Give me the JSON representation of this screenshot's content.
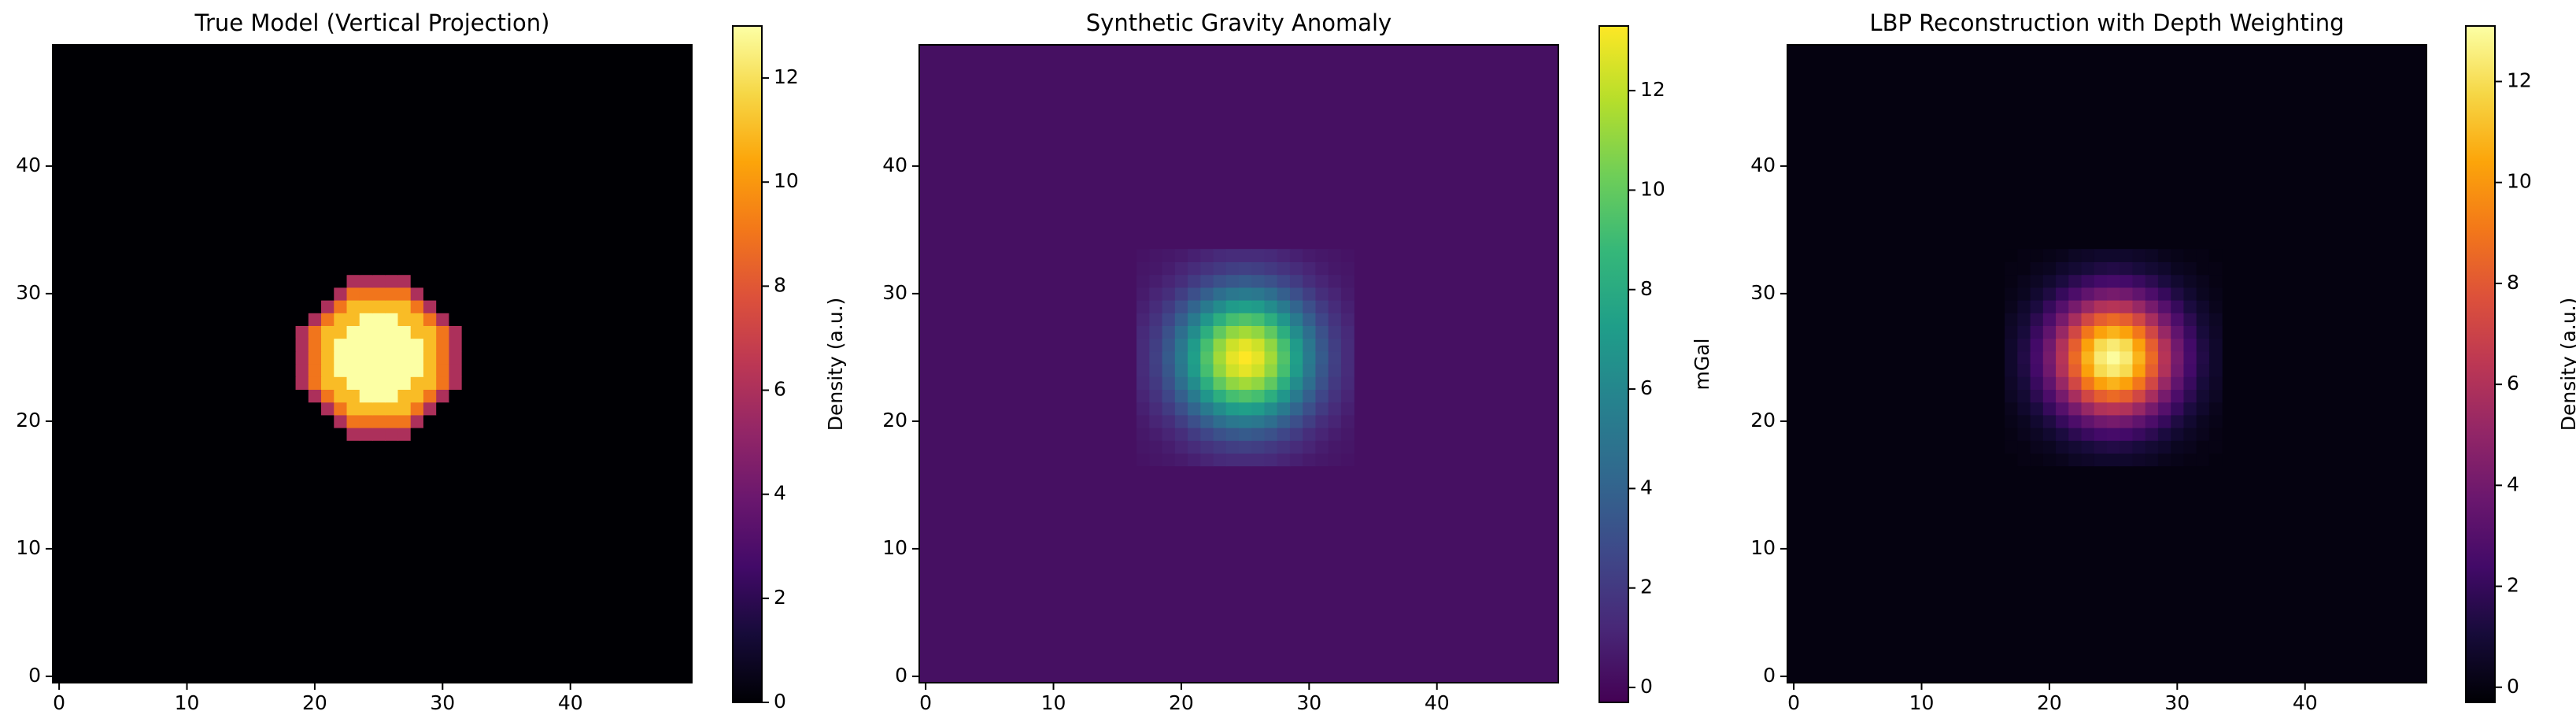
{
  "chart_data": [
    {
      "type": "heatmap",
      "title": "True Model (Vertical Projection)",
      "colorbar_label": "Density (a.u.)",
      "colormap": "inferno",
      "xlim": [
        -0.5,
        49.5
      ],
      "ylim": [
        -0.5,
        49.5
      ],
      "xticks": [
        0,
        10,
        20,
        30,
        40
      ],
      "yticks": [
        0,
        10,
        20,
        30,
        40
      ],
      "clim": [
        0,
        13
      ],
      "cticks": [
        0,
        2,
        4,
        6,
        8,
        10,
        12
      ],
      "fill_value": 0,
      "x": [
        17,
        18,
        19,
        20,
        21,
        22,
        23,
        24,
        25,
        26,
        27,
        28,
        29,
        30,
        31,
        32,
        33
      ],
      "y": [
        17,
        18,
        19,
        20,
        21,
        22,
        23,
        24,
        25,
        26,
        27,
        28,
        29,
        30,
        31,
        32,
        33
      ],
      "z": [
        [
          0,
          0,
          0,
          0,
          0,
          0,
          0,
          0,
          0,
          0,
          0,
          0,
          0,
          0,
          0,
          0,
          0
        ],
        [
          0,
          0,
          0,
          0,
          0,
          0,
          0,
          0,
          0,
          0,
          0,
          0,
          0,
          0,
          0,
          0,
          0
        ],
        [
          0,
          0,
          0,
          0,
          0,
          0,
          6,
          6,
          6,
          6,
          6,
          0,
          0,
          0,
          0,
          0,
          0
        ],
        [
          0,
          0,
          0,
          0,
          0,
          6,
          9,
          9,
          9,
          9,
          9,
          6,
          0,
          0,
          0,
          0,
          0
        ],
        [
          0,
          0,
          0,
          0,
          6,
          9,
          11,
          11,
          11,
          11,
          11,
          9,
          6,
          0,
          0,
          0,
          0
        ],
        [
          0,
          0,
          0,
          6,
          9,
          11,
          11,
          13,
          13,
          13,
          11,
          11,
          9,
          6,
          0,
          0,
          0
        ],
        [
          0,
          0,
          6,
          9,
          11,
          11,
          13,
          13,
          13,
          13,
          13,
          11,
          11,
          9,
          6,
          0,
          0
        ],
        [
          0,
          0,
          6,
          9,
          11,
          13,
          13,
          13,
          13,
          13,
          13,
          13,
          11,
          9,
          6,
          0,
          0
        ],
        [
          0,
          0,
          6,
          9,
          11,
          13,
          13,
          13,
          13,
          13,
          13,
          13,
          11,
          9,
          6,
          0,
          0
        ],
        [
          0,
          0,
          6,
          9,
          11,
          13,
          13,
          13,
          13,
          13,
          13,
          13,
          11,
          9,
          6,
          0,
          0
        ],
        [
          0,
          0,
          6,
          9,
          11,
          11,
          13,
          13,
          13,
          13,
          13,
          11,
          11,
          9,
          6,
          0,
          0
        ],
        [
          0,
          0,
          0,
          6,
          9,
          11,
          11,
          13,
          13,
          13,
          11,
          11,
          9,
          6,
          0,
          0,
          0
        ],
        [
          0,
          0,
          0,
          0,
          6,
          9,
          11,
          11,
          11,
          11,
          11,
          9,
          6,
          0,
          0,
          0,
          0
        ],
        [
          0,
          0,
          0,
          0,
          0,
          6,
          9,
          9,
          9,
          9,
          9,
          6,
          0,
          0,
          0,
          0,
          0
        ],
        [
          0,
          0,
          0,
          0,
          0,
          0,
          6,
          6,
          6,
          6,
          6,
          0,
          0,
          0,
          0,
          0,
          0
        ],
        [
          0,
          0,
          0,
          0,
          0,
          0,
          0,
          0,
          0,
          0,
          0,
          0,
          0,
          0,
          0,
          0,
          0
        ],
        [
          0,
          0,
          0,
          0,
          0,
          0,
          0,
          0,
          0,
          0,
          0,
          0,
          0,
          0,
          0,
          0,
          0
        ]
      ]
    },
    {
      "type": "heatmap",
      "title": "Synthetic Gravity Anomaly",
      "colorbar_label": "mGal",
      "colormap": "viridis",
      "xlim": [
        -0.5,
        49.5
      ],
      "ylim": [
        -0.5,
        49.5
      ],
      "xticks": [
        0,
        10,
        20,
        30,
        40
      ],
      "yticks": [
        0,
        10,
        20,
        30,
        40
      ],
      "clim": [
        -0.3,
        13.3
      ],
      "cticks": [
        0,
        2,
        4,
        6,
        8,
        10,
        12
      ],
      "fill_value": 0.3,
      "x": [
        17,
        18,
        19,
        20,
        21,
        22,
        23,
        24,
        25,
        26,
        27,
        28,
        29,
        30,
        31,
        32,
        33
      ],
      "y": [
        17,
        18,
        19,
        20,
        21,
        22,
        23,
        24,
        25,
        26,
        27,
        28,
        29,
        30,
        31,
        32,
        33
      ],
      "z": [
        [
          0.4,
          0.5,
          0.6,
          0.7,
          0.9,
          1.1,
          1.3,
          1.4,
          1.4,
          1.4,
          1.3,
          1.1,
          0.9,
          0.7,
          0.6,
          0.5,
          0.4
        ],
        [
          0.5,
          0.6,
          0.8,
          1.1,
          1.4,
          1.7,
          2.0,
          2.2,
          2.3,
          2.2,
          2.0,
          1.7,
          1.4,
          1.1,
          0.8,
          0.6,
          0.5
        ],
        [
          0.6,
          0.8,
          1.1,
          1.5,
          2.1,
          2.6,
          3.1,
          3.4,
          3.6,
          3.4,
          3.1,
          2.6,
          2.1,
          1.5,
          1.1,
          0.8,
          0.6
        ],
        [
          0.7,
          1.1,
          1.5,
          2.2,
          3.0,
          3.8,
          4.6,
          5.1,
          5.3,
          5.1,
          4.6,
          3.8,
          3.0,
          2.2,
          1.5,
          1.1,
          0.7
        ],
        [
          0.9,
          1.4,
          2.1,
          3.0,
          4.1,
          5.3,
          6.3,
          7.1,
          7.3,
          7.1,
          6.3,
          5.3,
          4.1,
          3.0,
          2.1,
          1.4,
          0.9
        ],
        [
          1.1,
          1.7,
          2.6,
          3.8,
          5.3,
          6.8,
          8.2,
          9.2,
          9.5,
          9.2,
          8.2,
          6.8,
          5.3,
          3.8,
          2.6,
          1.7,
          1.1
        ],
        [
          1.3,
          2.0,
          3.1,
          4.6,
          6.3,
          8.2,
          9.9,
          11.0,
          11.4,
          11.0,
          9.9,
          8.2,
          6.3,
          4.6,
          3.1,
          2.0,
          1.3
        ],
        [
          1.4,
          2.2,
          3.4,
          5.1,
          7.1,
          9.2,
          11.0,
          12.3,
          12.8,
          12.3,
          11.0,
          9.2,
          7.1,
          5.1,
          3.4,
          2.2,
          1.4
        ],
        [
          1.4,
          2.3,
          3.6,
          5.3,
          7.3,
          9.5,
          11.4,
          12.8,
          13.3,
          12.8,
          11.4,
          9.5,
          7.3,
          5.3,
          3.6,
          2.3,
          1.4
        ],
        [
          1.4,
          2.2,
          3.4,
          5.1,
          7.1,
          9.2,
          11.0,
          12.3,
          12.8,
          12.3,
          11.0,
          9.2,
          7.1,
          5.1,
          3.4,
          2.2,
          1.4
        ],
        [
          1.3,
          2.0,
          3.1,
          4.6,
          6.3,
          8.2,
          9.9,
          11.0,
          11.4,
          11.0,
          9.9,
          8.2,
          6.3,
          4.6,
          3.1,
          2.0,
          1.3
        ],
        [
          1.1,
          1.7,
          2.6,
          3.8,
          5.3,
          6.8,
          8.2,
          9.2,
          9.5,
          9.2,
          8.2,
          6.8,
          5.3,
          3.8,
          2.6,
          1.7,
          1.1
        ],
        [
          0.9,
          1.4,
          2.1,
          3.0,
          4.1,
          5.3,
          6.3,
          7.1,
          7.3,
          7.1,
          6.3,
          5.3,
          4.1,
          3.0,
          2.1,
          1.4,
          0.9
        ],
        [
          0.7,
          1.1,
          1.5,
          2.2,
          3.0,
          3.8,
          4.6,
          5.1,
          5.3,
          5.1,
          4.6,
          3.8,
          3.0,
          2.2,
          1.5,
          1.1,
          0.7
        ],
        [
          0.6,
          0.8,
          1.1,
          1.5,
          2.1,
          2.6,
          3.1,
          3.4,
          3.6,
          3.4,
          3.1,
          2.6,
          2.1,
          1.5,
          1.1,
          0.8,
          0.6
        ],
        [
          0.5,
          0.6,
          0.8,
          1.1,
          1.4,
          1.7,
          2.0,
          2.2,
          2.3,
          2.2,
          2.0,
          1.7,
          1.4,
          1.1,
          0.8,
          0.6,
          0.5
        ],
        [
          0.4,
          0.5,
          0.6,
          0.7,
          0.9,
          1.1,
          1.3,
          1.4,
          1.4,
          1.4,
          1.3,
          1.1,
          0.9,
          0.7,
          0.6,
          0.5,
          0.4
        ]
      ]
    },
    {
      "type": "heatmap",
      "title": "LBP Reconstruction with Depth Weighting",
      "colorbar_label": "Density (a.u.)",
      "colormap": "inferno",
      "xlim": [
        -0.5,
        49.5
      ],
      "ylim": [
        -0.5,
        49.5
      ],
      "xticks": [
        0,
        10,
        20,
        30,
        40
      ],
      "yticks": [
        0,
        10,
        20,
        30,
        40
      ],
      "clim": [
        -0.3,
        13.1
      ],
      "cticks": [
        0,
        2,
        4,
        6,
        8,
        10,
        12
      ],
      "fill_value": 0.0,
      "x": [
        17,
        18,
        19,
        20,
        21,
        22,
        23,
        24,
        25,
        26,
        27,
        28,
        29,
        30,
        31,
        32,
        33
      ],
      "y": [
        17,
        18,
        19,
        20,
        21,
        22,
        23,
        24,
        25,
        26,
        27,
        28,
        29,
        30,
        31,
        32,
        33
      ],
      "z": [
        [
          0.0,
          0.1,
          0.1,
          0.2,
          0.3,
          0.5,
          0.6,
          0.7,
          0.7,
          0.7,
          0.6,
          0.5,
          0.3,
          0.2,
          0.1,
          0.1,
          0.0
        ],
        [
          0.1,
          0.1,
          0.3,
          0.4,
          0.7,
          0.9,
          1.1,
          1.3,
          1.4,
          1.3,
          1.1,
          0.9,
          0.7,
          0.4,
          0.3,
          0.1,
          0.1
        ],
        [
          0.1,
          0.3,
          0.5,
          0.8,
          1.2,
          1.7,
          2.1,
          2.4,
          2.5,
          2.4,
          2.1,
          1.7,
          1.2,
          0.8,
          0.5,
          0.3,
          0.1
        ],
        [
          0.2,
          0.4,
          0.8,
          1.3,
          2.0,
          2.7,
          3.4,
          3.9,
          4.1,
          3.9,
          3.4,
          2.7,
          2.0,
          1.3,
          0.8,
          0.4,
          0.2
        ],
        [
          0.3,
          0.7,
          1.2,
          2.0,
          3.0,
          4.1,
          5.2,
          6.0,
          6.2,
          6.0,
          5.2,
          4.1,
          3.0,
          2.0,
          1.2,
          0.7,
          0.3
        ],
        [
          0.5,
          0.9,
          1.7,
          2.7,
          4.1,
          5.7,
          7.2,
          8.2,
          8.6,
          8.2,
          7.2,
          5.7,
          4.1,
          2.7,
          1.7,
          0.9,
          0.5
        ],
        [
          0.6,
          1.1,
          2.1,
          3.4,
          5.2,
          7.2,
          9.0,
          10.3,
          10.8,
          10.3,
          9.0,
          7.2,
          5.2,
          3.4,
          2.1,
          1.1,
          0.6
        ],
        [
          0.7,
          1.3,
          2.4,
          3.9,
          6.0,
          8.2,
          10.3,
          11.9,
          12.4,
          11.9,
          10.3,
          8.2,
          6.0,
          3.9,
          2.4,
          1.3,
          0.7
        ],
        [
          0.7,
          1.4,
          2.5,
          4.1,
          6.2,
          8.6,
          10.8,
          12.4,
          13.0,
          12.4,
          10.8,
          8.6,
          6.2,
          4.1,
          2.5,
          1.4,
          0.7
        ],
        [
          0.7,
          1.3,
          2.4,
          3.9,
          6.0,
          8.2,
          10.3,
          11.9,
          12.4,
          11.9,
          10.3,
          8.2,
          6.0,
          3.9,
          2.4,
          1.3,
          0.7
        ],
        [
          0.6,
          1.1,
          2.1,
          3.4,
          5.2,
          7.2,
          9.0,
          10.3,
          10.8,
          10.3,
          9.0,
          7.2,
          5.2,
          3.4,
          2.1,
          1.1,
          0.6
        ],
        [
          0.5,
          0.9,
          1.7,
          2.7,
          4.1,
          5.7,
          7.2,
          8.2,
          8.6,
          8.2,
          7.2,
          5.7,
          4.1,
          2.7,
          1.7,
          0.9,
          0.5
        ],
        [
          0.3,
          0.7,
          1.2,
          2.0,
          3.0,
          4.1,
          5.2,
          6.0,
          6.2,
          6.0,
          5.2,
          4.1,
          3.0,
          2.0,
          1.2,
          0.7,
          0.3
        ],
        [
          0.2,
          0.4,
          0.8,
          1.3,
          2.0,
          2.7,
          3.4,
          3.9,
          4.1,
          3.9,
          3.4,
          2.7,
          2.0,
          1.3,
          0.8,
          0.4,
          0.2
        ],
        [
          0.1,
          0.3,
          0.5,
          0.8,
          1.2,
          1.7,
          2.1,
          2.4,
          2.5,
          2.4,
          2.1,
          1.7,
          1.2,
          0.8,
          0.5,
          0.3,
          0.1
        ],
        [
          0.1,
          0.1,
          0.3,
          0.4,
          0.7,
          0.9,
          1.1,
          1.3,
          1.4,
          1.3,
          1.1,
          0.9,
          0.7,
          0.4,
          0.3,
          0.1,
          0.1
        ],
        [
          0.0,
          0.1,
          0.1,
          0.2,
          0.3,
          0.5,
          0.6,
          0.7,
          0.7,
          0.7,
          0.6,
          0.5,
          0.3,
          0.2,
          0.1,
          0.1,
          0.0
        ]
      ]
    }
  ]
}
